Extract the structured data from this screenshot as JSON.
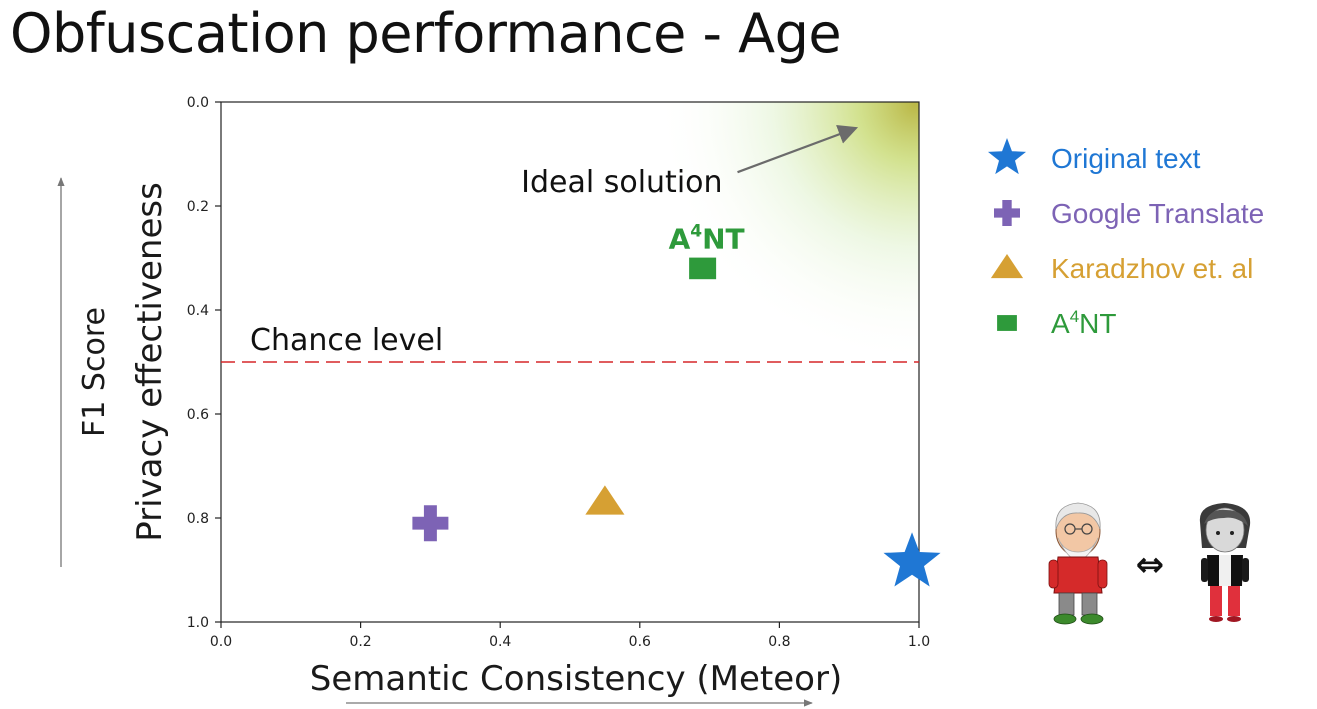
{
  "slide": {
    "title": "Obfuscation performance - Age"
  },
  "colors": {
    "original": "#1f77d4",
    "google": "#7d63b5",
    "karadzhov": "#d6a033",
    "a4nt": "#2e9a3b",
    "chance_line": "#d62728"
  },
  "chart_data": {
    "type": "scatter",
    "xlabel": "Semantic Consistency (Meteor)",
    "ylabel": "Privacy effectiveness",
    "outer_ylabel": "F1 Score",
    "xlim": [
      0.0,
      1.0
    ],
    "ylim": [
      0.0,
      1.0
    ],
    "y_inverted": true,
    "x_ticks": [
      "0.0",
      "0.2",
      "0.4",
      "0.6",
      "0.8",
      "1.0"
    ],
    "y_ticks": [
      "0.0",
      "0.2",
      "0.4",
      "0.6",
      "0.8",
      "1.0"
    ],
    "grid": false,
    "chance_level": {
      "value": 0.5,
      "label": "Chance level"
    },
    "ideal_annotation": {
      "label": "Ideal solution",
      "target": [
        0.91,
        0.05
      ]
    },
    "series": [
      {
        "name": "Original text",
        "marker": "star",
        "color": "#1f77d4",
        "x": 0.99,
        "y": 0.885
      },
      {
        "name": "Google Translate",
        "marker": "plus",
        "color": "#7d63b5",
        "x": 0.3,
        "y": 0.81
      },
      {
        "name": "Karadzhov et. al",
        "marker": "triangle",
        "color": "#d6a033",
        "x": 0.55,
        "y": 0.77
      },
      {
        "name": "A4NT",
        "marker": "square",
        "color": "#2e9a3b",
        "x": 0.69,
        "y": 0.32,
        "point_label": "A4NT"
      }
    ],
    "legend": {
      "placement": "right",
      "items": [
        {
          "base": "Original text",
          "sup": "",
          "rest": "",
          "marker": "star",
          "color": "#1f77d4"
        },
        {
          "base": "Google Translate",
          "sup": "",
          "rest": "",
          "marker": "plus",
          "color": "#7d63b5"
        },
        {
          "base": "Karadzhov et. al",
          "sup": "",
          "rest": "",
          "marker": "triangle",
          "color": "#d6a033"
        },
        {
          "base": "A",
          "sup": "4",
          "rest": "NT",
          "marker": "square",
          "color": "#2e9a3b"
        }
      ]
    }
  },
  "illustration": {
    "swap_symbol": "⇔",
    "left_figure": "old-man-figure",
    "right_figure": "young-person-figure"
  }
}
